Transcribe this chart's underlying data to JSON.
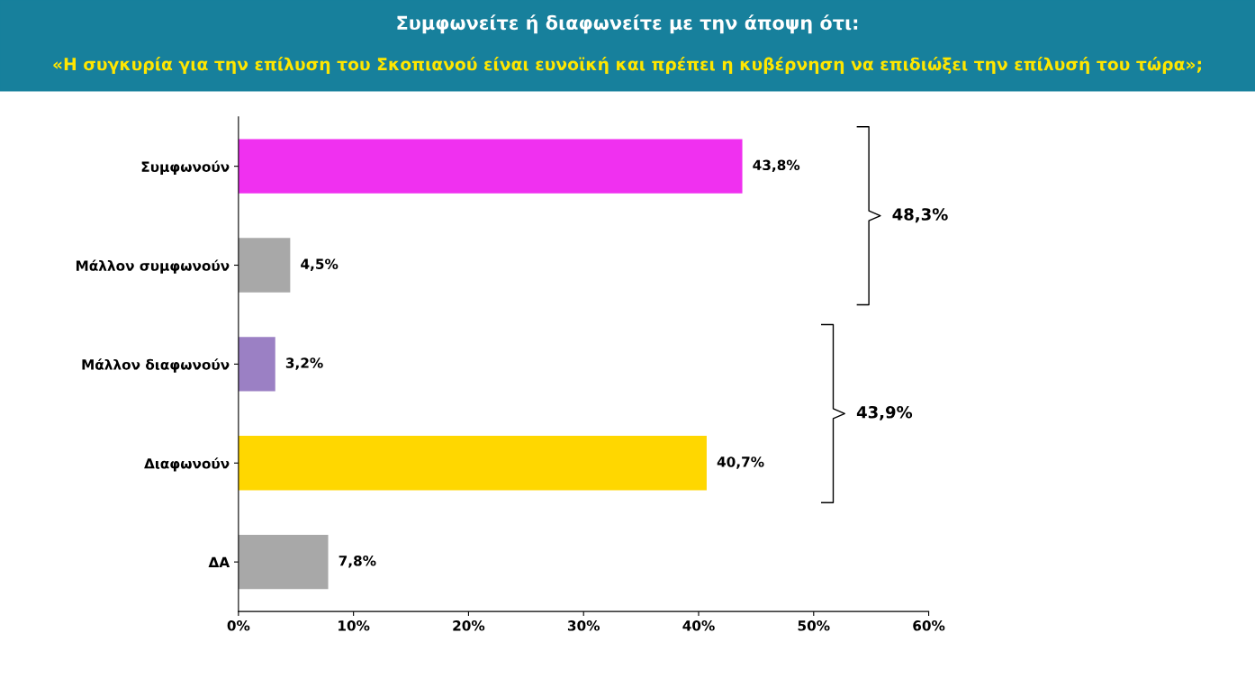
{
  "chart_data": {
    "type": "bar",
    "orientation": "horizontal",
    "title": "Συμφωνείτε ή διαφωνείτε με την άποψη ότι:",
    "subtitle": "«Η συγκυρία για την επίλυση του Σκοπιανού είναι ευνοϊκή και πρέπει η κυβέρνηση να επιδιώξει την επίλυσή του τώρα»;",
    "categories": [
      "Συμφωνούν",
      "Μάλλον συμφωνούν",
      "Μάλλον διαφωνούν",
      "Διαφωνούν",
      "ΔΑ"
    ],
    "values": [
      43.8,
      4.5,
      3.2,
      40.7,
      7.8
    ],
    "colors": [
      "#f030f0",
      "#a8a8a8",
      "#9b80c4",
      "#ffd700",
      "#a8a8a8"
    ],
    "value_labels": [
      "43,8%",
      "4,5%",
      "3,2%",
      "40,7%",
      "7,8%"
    ],
    "xlim": [
      0,
      60
    ],
    "xticks": [
      {
        "value": 0,
        "label": "0%"
      },
      {
        "value": 10,
        "label": "10%"
      },
      {
        "value": 20,
        "label": "20%"
      },
      {
        "value": 30,
        "label": "30%"
      },
      {
        "value": 40,
        "label": "40%"
      },
      {
        "value": 50,
        "label": "50%"
      },
      {
        "value": 60,
        "label": "60%"
      }
    ],
    "annotations": [
      "48,3%",
      "43,9%"
    ],
    "grid": false,
    "legend": false
  }
}
